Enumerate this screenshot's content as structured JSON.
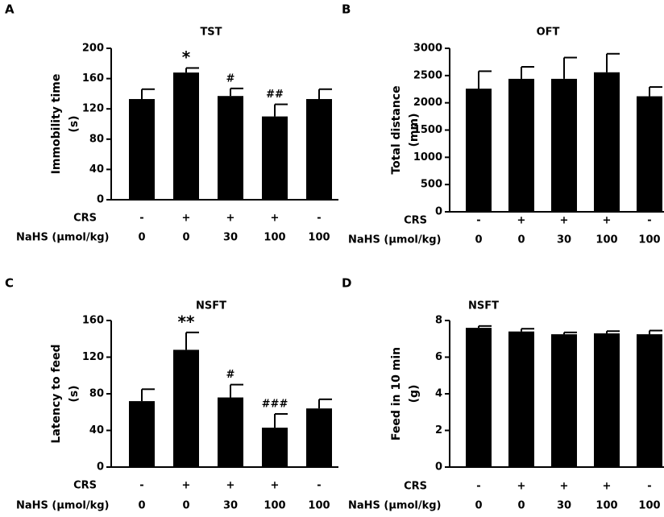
{
  "chart_data": [
    {
      "type": "bar",
      "panel": "A",
      "title": "TST",
      "ylabel": [
        "Immobility time",
        "(s)"
      ],
      "row_labels": [
        "CRS",
        "NaHS (μmol/kg)"
      ],
      "crs": [
        "-",
        "+",
        "+",
        "+",
        "-"
      ],
      "categories": [
        "0",
        "0",
        "30",
        "100",
        "100"
      ],
      "color": "#000000",
      "values": [
        133,
        168,
        137,
        110,
        133
      ],
      "errors": [
        13,
        6,
        10,
        16,
        13
      ],
      "annotations": [
        null,
        "*",
        "#",
        "##",
        null
      ],
      "ylim": [
        0,
        200
      ],
      "yticks": [
        0,
        40,
        80,
        120,
        160,
        200
      ]
    },
    {
      "type": "bar",
      "panel": "B",
      "title": "OFT",
      "ylabel": [
        "Total distance",
        "(mm)"
      ],
      "row_labels": [
        "CRS",
        "NaHS (μmol/kg)"
      ],
      "crs": [
        "-",
        "+",
        "+",
        "+",
        "-"
      ],
      "categories": [
        "0",
        "0",
        "30",
        "100",
        "100"
      ],
      "color": "#000000",
      "values": [
        2260,
        2440,
        2440,
        2560,
        2120
      ],
      "errors": [
        320,
        220,
        390,
        340,
        170
      ],
      "annotations": [
        null,
        null,
        null,
        null,
        null
      ],
      "ylim": [
        0,
        3000
      ],
      "yticks": [
        0,
        500,
        1000,
        1500,
        2000,
        2500,
        3000
      ]
    },
    {
      "type": "bar",
      "panel": "C",
      "title": "NSFT",
      "ylabel": [
        "Latency to feed",
        "(s)"
      ],
      "row_labels": [
        "CRS",
        "NaHS (μmol/kg)"
      ],
      "crs": [
        "-",
        "+",
        "+",
        "+",
        "-"
      ],
      "categories": [
        "0",
        "0",
        "30",
        "100",
        "100"
      ],
      "color": "#000000",
      "values": [
        72,
        128,
        76,
        43,
        64
      ],
      "errors": [
        13,
        19,
        14,
        15,
        10
      ],
      "annotations": [
        null,
        "**",
        "#",
        "###",
        null
      ],
      "ylim": [
        0,
        160
      ],
      "yticks": [
        0,
        40,
        80,
        120,
        160
      ]
    },
    {
      "type": "bar",
      "panel": "D",
      "title": "NSFT",
      "ylabel": [
        "Feed in 10 min",
        "(g)"
      ],
      "row_labels": [
        "CRS",
        "NaHS (μmol/kg)"
      ],
      "crs": [
        "-",
        "+",
        "+",
        "+",
        "-"
      ],
      "categories": [
        "0",
        "0",
        "30",
        "100",
        "100"
      ],
      "color": "#000000",
      "values": [
        7.6,
        7.4,
        7.25,
        7.3,
        7.25
      ],
      "errors": [
        0.1,
        0.15,
        0.1,
        0.12,
        0.2
      ],
      "annotations": [
        null,
        null,
        null,
        null,
        null
      ],
      "ylim": [
        0,
        8
      ],
      "yticks": [
        0,
        2,
        4,
        6,
        8
      ]
    }
  ]
}
